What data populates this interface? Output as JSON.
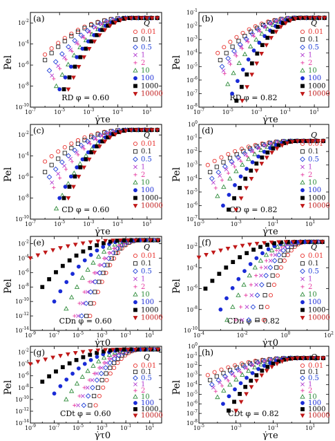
{
  "legend": {
    "title": "Q",
    "entries": [
      {
        "label": "0.01",
        "color": "#e8312d",
        "marker": "open-circle"
      },
      {
        "label": "0.1",
        "color": "#222222",
        "marker": "open-square"
      },
      {
        "label": "0.5",
        "color": "#1f3fd8",
        "marker": "open-diamond"
      },
      {
        "label": "1",
        "color": "#b33fd0",
        "marker": "cross"
      },
      {
        "label": "2",
        "color": "#e63aa0",
        "marker": "plus"
      },
      {
        "label": "10",
        "color": "#2e8b3a",
        "marker": "open-triangle"
      },
      {
        "label": "100",
        "color": "#1a2bd6",
        "marker": "filled-circle"
      },
      {
        "label": "1000",
        "color": "#000000",
        "marker": "filled-square"
      },
      {
        "label": "10000",
        "color": "#c01818",
        "marker": "filled-triangle-down"
      }
    ]
  },
  "chart_data": [
    {
      "panel": "(a)",
      "type": "scatter",
      "scale": "log-log",
      "xlabel": "γ̇τe",
      "ylabel": "Pel",
      "annotation": "RD  φ = 0.60",
      "xlim": [
        1e-07,
        100
      ],
      "ylim": [
        1e-10,
        0.1
      ],
      "xticks": [
        "10-7",
        "10-5",
        "10-3",
        "10-1",
        "101"
      ],
      "yticks": [
        "10-10",
        "10-8",
        "10-6",
        "10-4",
        "10-2"
      ],
      "series": [
        {
          "name": "0.01",
          "start": [
            1e-06,
            1e-05
          ],
          "plateau": 0.03
        },
        {
          "name": "0.1",
          "start": [
            1e-06,
            3e-06
          ],
          "plateau": 0.03
        },
        {
          "name": "0.5",
          "start": [
            2e-06,
            3e-07
          ],
          "plateau": 0.03
        },
        {
          "name": "1",
          "start": [
            3e-06,
            1e-07
          ],
          "plateau": 0.03
        },
        {
          "name": "2",
          "start": [
            4e-06,
            5e-08
          ],
          "plateau": 0.03
        },
        {
          "name": "10",
          "start": [
            6e-06,
            1e-08
          ],
          "plateau": 0.03
        },
        {
          "name": "100",
          "start": [
            1e-05,
            5e-09
          ],
          "plateau": 0.03
        },
        {
          "name": "1000",
          "start": [
            2e-05,
            5e-09
          ],
          "plateau": 0.03
        },
        {
          "name": "10000",
          "start": [
            4e-05,
            5e-09
          ],
          "plateau": 0.03
        }
      ]
    },
    {
      "panel": "(b)",
      "type": "scatter",
      "scale": "log-log",
      "xlabel": "γ̇τe",
      "ylabel": "Pel",
      "annotation": "RD  φ = 0.82",
      "xlim": [
        1e-07,
        100
      ],
      "ylim": [
        1e-08,
        0.1
      ],
      "xticks": [
        "10-7",
        "10-5",
        "10-3",
        "10-1",
        "101"
      ],
      "yticks": [
        "10-8",
        "10-7",
        "10-6",
        "10-5",
        "10-4",
        "10-3",
        "10-2",
        "10-1"
      ],
      "series": [
        {
          "name": "0.01",
          "start": [
            2e-06,
            0.0001
          ],
          "plateau": 0.04
        },
        {
          "name": "0.1",
          "start": [
            3e-06,
            3e-05
          ],
          "plateau": 0.04
        },
        {
          "name": "0.5",
          "start": [
            4e-06,
            1e-05
          ],
          "plateau": 0.04
        },
        {
          "name": "1",
          "start": [
            5e-06,
            5e-06
          ],
          "plateau": 0.04
        },
        {
          "name": "2",
          "start": [
            6e-06,
            3e-06
          ],
          "plateau": 0.04
        },
        {
          "name": "10",
          "start": [
            1e-05,
            5e-07
          ],
          "plateau": 0.04
        },
        {
          "name": "100",
          "start": [
            2e-05,
            1e-07
          ],
          "plateau": 0.04
        },
        {
          "name": "1000",
          "start": [
            4e-05,
            3e-08
          ],
          "plateau": 0.04
        },
        {
          "name": "10000",
          "start": [
            0.0001,
            3e-08
          ],
          "plateau": 0.04
        }
      ]
    },
    {
      "panel": "(c)",
      "type": "scatter",
      "scale": "log-log",
      "xlabel": "γ̇τe",
      "ylabel": "Pel",
      "annotation": "CD  φ = 0.60",
      "xlim": [
        1e-07,
        100
      ],
      "ylim": [
        1e-10,
        0.1
      ],
      "xticks": [
        "10-7",
        "10-5",
        "10-3",
        "10-1",
        "101"
      ],
      "yticks": [
        "10-10",
        "10-8",
        "10-6",
        "10-4",
        "10-2"
      ],
      "series": [
        {
          "name": "0.01",
          "start": [
            1e-06,
            3e-05
          ],
          "plateau": 0.03
        },
        {
          "name": "0.1",
          "start": [
            1e-06,
            3e-06
          ],
          "plateau": 0.03
        },
        {
          "name": "0.5",
          "start": [
            2e-06,
            1e-06
          ],
          "plateau": 0.03
        },
        {
          "name": "1",
          "start": [
            3e-06,
            3e-07
          ],
          "plateau": 0.03
        },
        {
          "name": "2",
          "start": [
            4e-06,
            1e-07
          ],
          "plateau": 0.03
        },
        {
          "name": "10",
          "start": [
            6e-06,
            1e-09
          ],
          "plateau": 0.03
        },
        {
          "name": "100",
          "start": [
            1e-05,
            1e-08
          ],
          "plateau": 0.03
        },
        {
          "name": "1000",
          "start": [
            2e-05,
            1e-08
          ],
          "plateau": 0.03
        },
        {
          "name": "10000",
          "start": [
            4e-05,
            1e-08
          ],
          "plateau": 0.03
        }
      ]
    },
    {
      "panel": "(d)",
      "type": "scatter",
      "scale": "log-log",
      "xlabel": "γ̇τe",
      "ylabel": "Pel",
      "annotation": "CD  φ = 0.82",
      "xlim": [
        1e-05,
        100
      ],
      "ylim": [
        1e-07,
        1
      ],
      "xticks": [
        "10-5",
        "10-3",
        "10-1",
        "101"
      ],
      "yticks": [
        "10-7",
        "10-6",
        "10-5",
        "10-4",
        "10-3",
        "10-2",
        "10-1",
        "100"
      ],
      "series": [
        {
          "name": "0.01",
          "start": [
            3e-05,
            0.001
          ],
          "plateau": 0.06
        },
        {
          "name": "0.1",
          "start": [
            4e-05,
            0.0003
          ],
          "plateau": 0.06
        },
        {
          "name": "0.5",
          "start": [
            5e-05,
            0.0001
          ],
          "plateau": 0.06
        },
        {
          "name": "1",
          "start": [
            6e-05,
            5e-05
          ],
          "plateau": 0.06
        },
        {
          "name": "2",
          "start": [
            8e-05,
            2e-05
          ],
          "plateau": 0.06
        },
        {
          "name": "10",
          "start": [
            0.0001,
            5e-06
          ],
          "plateau": 0.06
        },
        {
          "name": "100",
          "start": [
            0.0002,
            1e-06
          ],
          "plateau": 0.06
        },
        {
          "name": "1000",
          "start": [
            0.0004,
            5e-07
          ],
          "plateau": 0.06
        },
        {
          "name": "10000",
          "start": [
            0.001,
            5e-07
          ],
          "plateau": 0.06
        }
      ]
    },
    {
      "panel": "(e)",
      "type": "scatter",
      "scale": "log-log",
      "xlabel": "γ̇τ0",
      "ylabel": "Pel",
      "annotation": "CDn  φ = 0.60",
      "xlim": [
        1e-09,
        100
      ],
      "ylim": [
        1e-14,
        0.1
      ],
      "xticks": [
        "10-9",
        "10-7",
        "10-5",
        "10-3",
        "10-1",
        "101"
      ],
      "yticks": [
        "10-14",
        "10-12",
        "10-10",
        "10-8",
        "10-6",
        "10-4",
        "10-2"
      ],
      "series": [
        {
          "name": "0.01",
          "start": [
            0.0001,
            1e-12
          ],
          "plateau": 0.03
        },
        {
          "name": "0.1",
          "start": [
            5e-05,
            1e-12
          ],
          "plateau": 0.03
        },
        {
          "name": "0.5",
          "start": [
            2e-05,
            1e-12
          ],
          "plateau": 0.03
        },
        {
          "name": "1",
          "start": [
            1e-05,
            1e-12
          ],
          "plateau": 0.03
        },
        {
          "name": "2",
          "start": [
            5e-06,
            1e-12
          ],
          "plateau": 0.03
        },
        {
          "name": "10",
          "start": [
            1e-06,
            1e-11
          ],
          "plateau": 0.03
        },
        {
          "name": "100",
          "start": [
            1e-07,
            1e-10
          ],
          "plateau": 0.03
        },
        {
          "name": "1000",
          "start": [
            1e-08,
            1e-08
          ],
          "plateau": 0.03
        },
        {
          "name": "10000",
          "start": [
            1e-09,
            0.0001
          ],
          "plateau": 0.03
        }
      ]
    },
    {
      "panel": "(f)",
      "type": "scatter",
      "scale": "log-log",
      "xlabel": "γ̇τ0",
      "ylabel": "Pel",
      "annotation": "CDn  φ = 0.82",
      "xlim": [
        0.0001,
        100
      ],
      "ylim": [
        1e-10,
        0.1
      ],
      "xticks": [
        "10-4",
        "10-2",
        "100",
        "102"
      ],
      "yticks": [
        "10-10",
        "10-8",
        "10-6",
        "10-4",
        "10-2"
      ],
      "series": [
        {
          "name": "0.01",
          "start": [
            0.1,
            1e-09
          ],
          "plateau": 0.03
        },
        {
          "name": "0.1",
          "start": [
            0.05,
            1e-09
          ],
          "plateau": 0.03
        },
        {
          "name": "0.5",
          "start": [
            0.02,
            1e-09
          ],
          "plateau": 0.03
        },
        {
          "name": "1",
          "start": [
            0.01,
            1e-09
          ],
          "plateau": 0.03
        },
        {
          "name": "2",
          "start": [
            0.005,
            1e-09
          ],
          "plateau": 0.03
        },
        {
          "name": "10",
          "start": [
            0.002,
            1e-09
          ],
          "plateau": 0.03
        },
        {
          "name": "100",
          "start": [
            0.001,
            1e-08
          ],
          "plateau": 0.03
        },
        {
          "name": "1000",
          "start": [
            0.0002,
            1e-06
          ],
          "plateau": 0.03
        },
        {
          "name": "10000",
          "start": [
            0.0001,
            0.001
          ],
          "plateau": 0.03
        }
      ]
    },
    {
      "panel": "(g)",
      "type": "scatter",
      "scale": "log-log",
      "xlabel": "γ̇τ0",
      "ylabel": "Pel",
      "annotation": "CDt  φ = 0.60",
      "xlim": [
        1e-09,
        100
      ],
      "ylim": [
        1e-14,
        0.1
      ],
      "xticks": [
        "10-9",
        "10-7",
        "10-5",
        "10-3",
        "10-1",
        "101"
      ],
      "yticks": [
        "10-14",
        "10-12",
        "10-10",
        "10-8",
        "10-6",
        "10-4",
        "10-2"
      ],
      "series": [
        {
          "name": "0.01",
          "start": [
            0.0003,
            1e-11
          ],
          "plateau": 0.03
        },
        {
          "name": "0.1",
          "start": [
            0.0001,
            1e-11
          ],
          "plateau": 0.03
        },
        {
          "name": "0.5",
          "start": [
            3e-05,
            1e-11
          ],
          "plateau": 0.03
        },
        {
          "name": "1",
          "start": [
            1e-05,
            1e-11
          ],
          "plateau": 0.03
        },
        {
          "name": "2",
          "start": [
            5e-06,
            1e-11
          ],
          "plateau": 0.03
        },
        {
          "name": "10",
          "start": [
            1e-06,
            1e-10
          ],
          "plateau": 0.03
        },
        {
          "name": "100",
          "start": [
            1e-07,
            1e-09
          ],
          "plateau": 0.03
        },
        {
          "name": "1000",
          "start": [
            1e-08,
            1e-07
          ],
          "plateau": 0.03
        },
        {
          "name": "10000",
          "start": [
            1e-09,
            0.0001
          ],
          "plateau": 0.03
        }
      ]
    },
    {
      "panel": "(h)",
      "type": "scatter",
      "scale": "log-log",
      "xlabel": "γ̇τe",
      "ylabel": "Pel",
      "annotation": "CDt  φ = 0.82",
      "xlim": [
        1e-05,
        100
      ],
      "ylim": [
        1e-08,
        1
      ],
      "xticks": [
        "10-5",
        "10-3",
        "10-1",
        "101"
      ],
      "yticks": [
        "10-8",
        "10-7",
        "10-6",
        "10-5",
        "10-4",
        "10-3",
        "10-2",
        "10-1",
        "100"
      ],
      "series": [
        {
          "name": "0.01",
          "start": [
            3e-05,
            0.001
          ],
          "plateau": 0.06
        },
        {
          "name": "0.1",
          "start": [
            4e-05,
            0.0003
          ],
          "plateau": 0.06
        },
        {
          "name": "0.5",
          "start": [
            5e-05,
            0.0001
          ],
          "plateau": 0.06
        },
        {
          "name": "1",
          "start": [
            6e-05,
            5e-05
          ],
          "plateau": 0.06
        },
        {
          "name": "2",
          "start": [
            8e-05,
            2e-05
          ],
          "plateau": 0.06
        },
        {
          "name": "10",
          "start": [
            0.0001,
            5e-06
          ],
          "plateau": 0.06
        },
        {
          "name": "100",
          "start": [
            0.0002,
            1e-06
          ],
          "plateau": 0.06
        },
        {
          "name": "1000",
          "start": [
            0.0004,
            2e-07
          ],
          "plateau": 0.06
        },
        {
          "name": "10000",
          "start": [
            0.001,
            2e-07
          ],
          "plateau": 0.06
        }
      ]
    }
  ]
}
